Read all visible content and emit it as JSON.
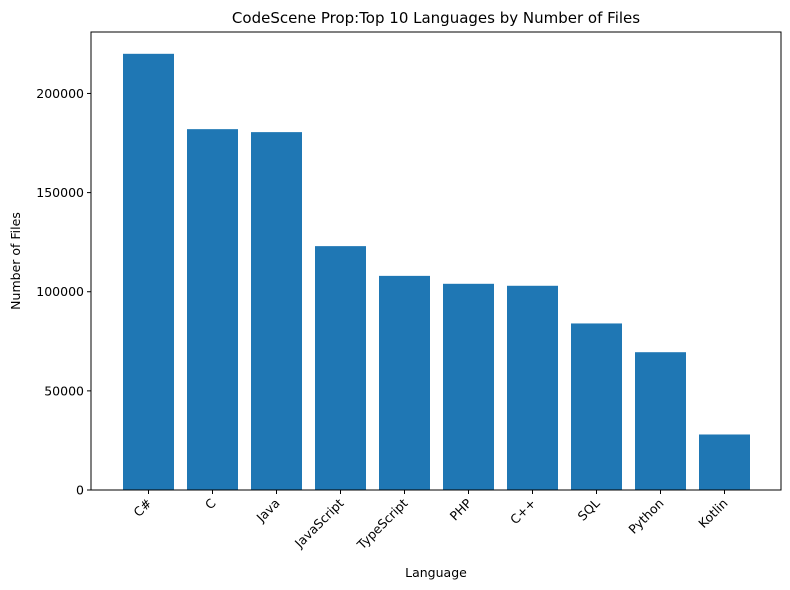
{
  "chart_data": {
    "type": "bar",
    "title": "CodeScene Prop:Top 10 Languages by Number of Files",
    "xlabel": "Language",
    "ylabel": "Number of Files",
    "categories": [
      "C#",
      "C",
      "Java",
      "JavaScript",
      "TypeScript",
      "PHP",
      "C++",
      "SQL",
      "Python",
      "Kotlin"
    ],
    "values": [
      220000,
      182000,
      180500,
      123000,
      108000,
      104000,
      103000,
      84000,
      69500,
      28000
    ],
    "ylim": [
      0,
      231000
    ],
    "yticks": [
      0,
      50000,
      100000,
      150000,
      200000
    ],
    "ytick_labels": [
      "0",
      "50000",
      "100000",
      "150000",
      "200000"
    ],
    "bar_color": "#1f77b4",
    "grid": false
  }
}
